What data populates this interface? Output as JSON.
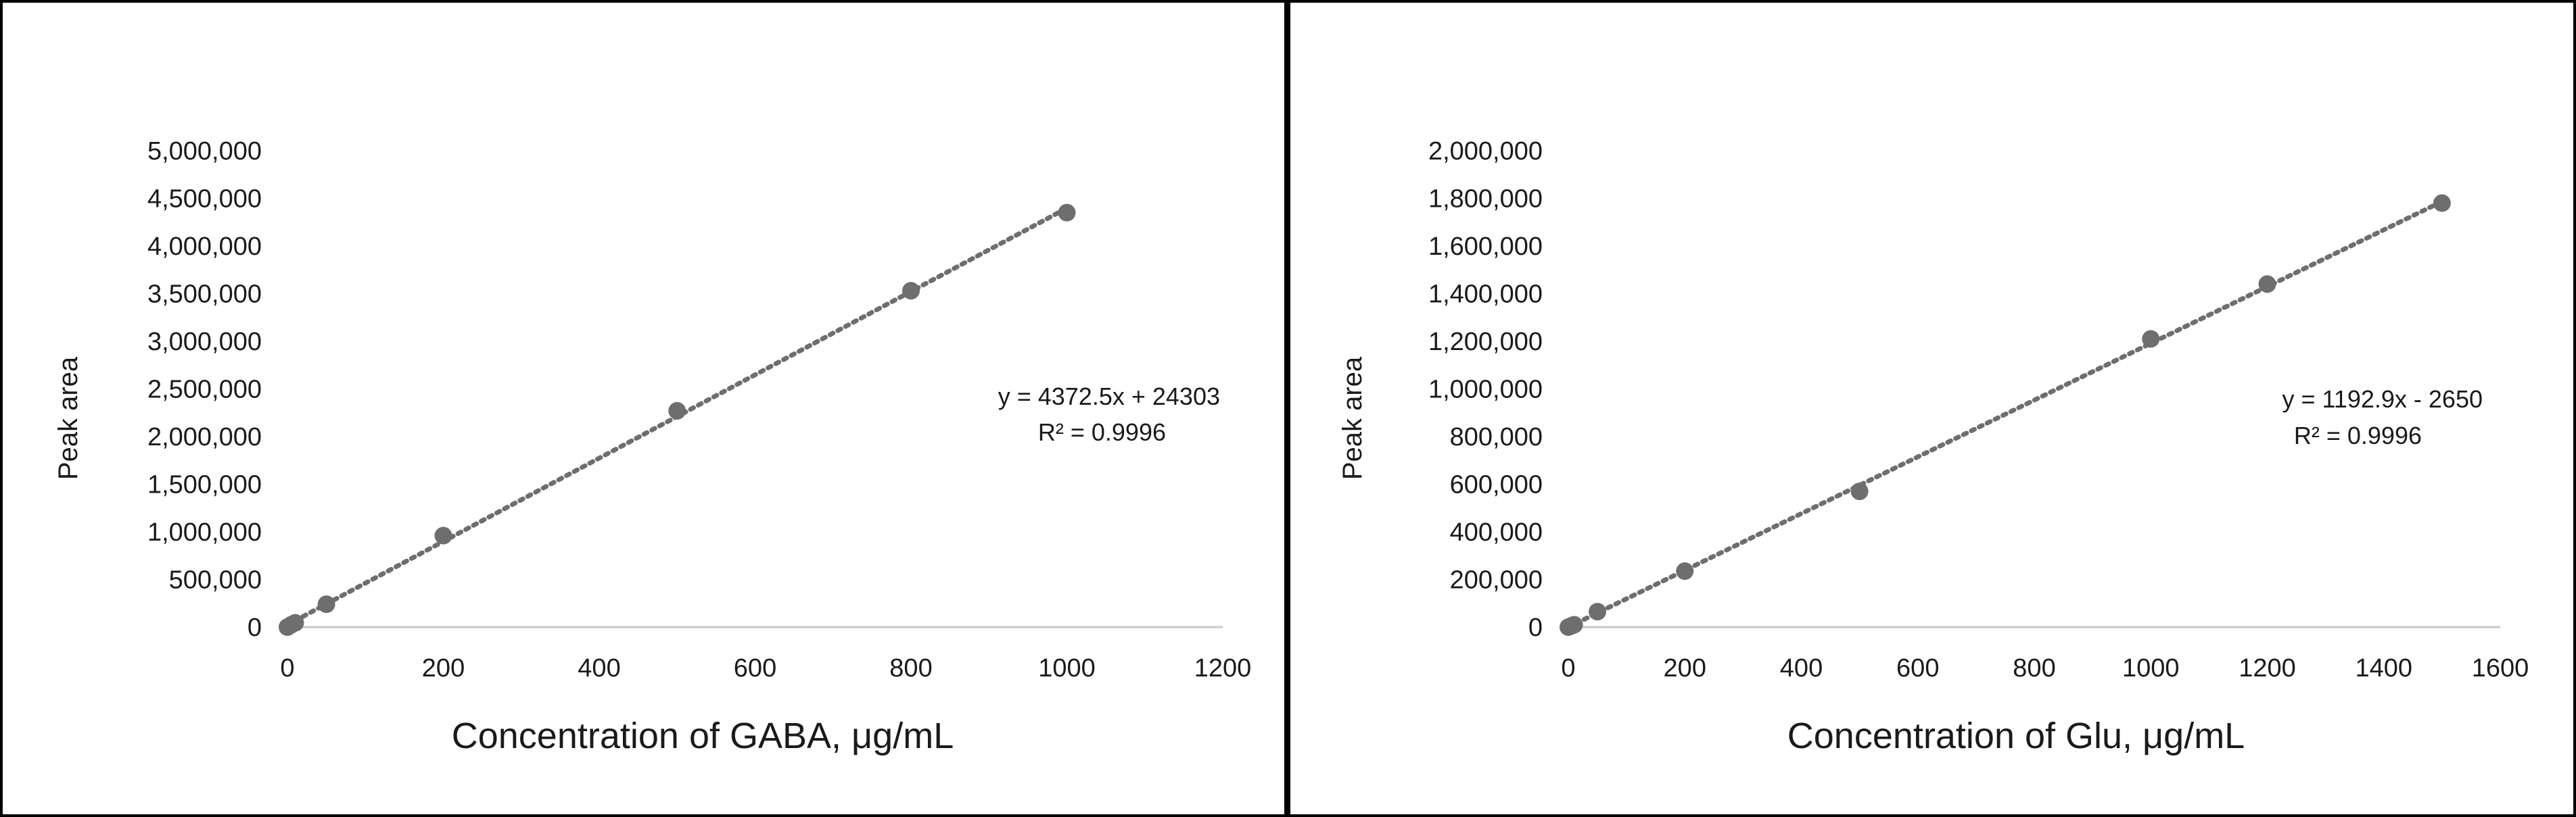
{
  "chart_data": [
    {
      "type": "scatter",
      "xlabel": "Concentration of GABA, μg/mL",
      "ylabel": "Peak area",
      "xlim": [
        0,
        1200
      ],
      "ylim": [
        0,
        5000000
      ],
      "x_ticks": [
        "0",
        "200",
        "400",
        "600",
        "800",
        "1000",
        "1200"
      ],
      "y_ticks": [
        "0",
        "500,000",
        "1,000,000",
        "1,500,000",
        "2,000,000",
        "2,500,000",
        "3,000,000",
        "3,500,000",
        "4,000,000",
        "4,500,000",
        "5,000,000"
      ],
      "grid": false,
      "series": [
        {
          "x": [
            0,
            5,
            10,
            50,
            200,
            500,
            800,
            1000
          ],
          "y": [
            0,
            25000,
            45000,
            240000,
            960000,
            2270000,
            3530000,
            4350000
          ]
        }
      ],
      "trendline": {
        "type": "linear",
        "slope": 4372.5,
        "intercept": 24303,
        "equation": "y = 4372.5x + 24303",
        "r_squared": "R² = 0.9996"
      }
    },
    {
      "type": "scatter",
      "xlabel": "Concentration of Glu, μg/mL",
      "ylabel": "Peak area",
      "xlim": [
        0,
        1600
      ],
      "ylim": [
        0,
        2000000
      ],
      "x_ticks": [
        "0",
        "200",
        "400",
        "600",
        "800",
        "1000",
        "1200",
        "1400",
        "1600"
      ],
      "y_ticks": [
        "0",
        "200,000",
        "400,000",
        "600,000",
        "800,000",
        "1,000,000",
        "1,200,000",
        "1,400,000",
        "1,600,000",
        "1,800,000",
        "2,000,000"
      ],
      "grid": false,
      "series": [
        {
          "x": [
            0,
            5,
            10,
            50,
            200,
            500,
            1000,
            1200,
            1500
          ],
          "y": [
            0,
            5000,
            10000,
            65000,
            235000,
            570000,
            1210000,
            1440000,
            1780000
          ]
        }
      ],
      "trendline": {
        "type": "linear",
        "slope": 1192.9,
        "intercept": -2650,
        "equation": "y = 1192.9x - 2650",
        "r_squared": "R² = 0.9996"
      }
    }
  ]
}
